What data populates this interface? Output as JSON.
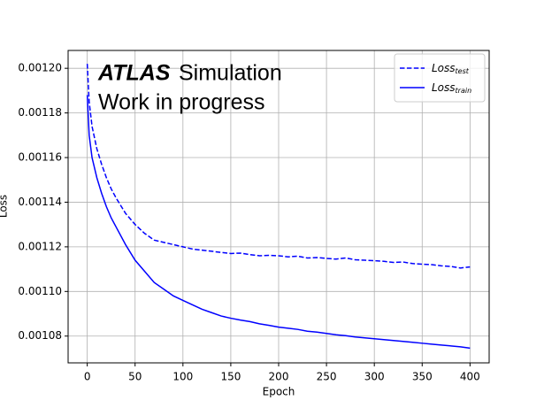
{
  "chart_data": {
    "type": "line",
    "annotations": {
      "experiment": "ATLAS",
      "label": "Simulation",
      "status": "Work in progress"
    },
    "xlabel": "Epoch",
    "ylabel": "Loss",
    "x": [
      0,
      2,
      5,
      10,
      15,
      20,
      25,
      30,
      40,
      50,
      60,
      70,
      80,
      90,
      100,
      110,
      120,
      130,
      140,
      150,
      160,
      170,
      180,
      190,
      200,
      210,
      220,
      230,
      240,
      250,
      260,
      270,
      280,
      290,
      300,
      310,
      320,
      330,
      340,
      350,
      360,
      370,
      380,
      390,
      400
    ],
    "series": [
      {
        "name": "Loss",
        "subscript": "test",
        "color": "#0000ff",
        "linestyle": "dashed",
        "values": [
          0.001202,
          0.001185,
          0.001174,
          0.001164,
          0.001157,
          0.001151,
          0.001146,
          0.001142,
          0.001135,
          0.00113,
          0.001126,
          0.001123,
          0.001122,
          0.001121,
          0.00112,
          0.001119,
          0.0011185,
          0.001118,
          0.0011175,
          0.001117,
          0.0011172,
          0.0011165,
          0.001116,
          0.0011162,
          0.001116,
          0.0011155,
          0.0011158,
          0.001115,
          0.0011152,
          0.0011148,
          0.0011145,
          0.001115,
          0.0011142,
          0.001114,
          0.0011138,
          0.0011135,
          0.001113,
          0.0011132,
          0.0011125,
          0.0011122,
          0.001112,
          0.0011115,
          0.0011112,
          0.0011105,
          0.001111
        ]
      },
      {
        "name": "Loss",
        "subscript": "train",
        "color": "#0000ff",
        "linestyle": "solid",
        "values": [
          0.001188,
          0.00117,
          0.00116,
          0.001151,
          0.001144,
          0.001138,
          0.001133,
          0.001129,
          0.001121,
          0.001114,
          0.001109,
          0.001104,
          0.001101,
          0.001098,
          0.001096,
          0.001094,
          0.001092,
          0.0010905,
          0.001089,
          0.001088,
          0.0010872,
          0.0010865,
          0.0010855,
          0.0010848,
          0.001084,
          0.0010835,
          0.001083,
          0.0010822,
          0.0010818,
          0.0010812,
          0.0010806,
          0.0010802,
          0.0010796,
          0.0010792,
          0.0010788,
          0.0010784,
          0.001078,
          0.0010776,
          0.0010772,
          0.0010768,
          0.0010764,
          0.001076,
          0.0010756,
          0.0010752,
          0.0010746
        ]
      }
    ],
    "xlim": [
      -20,
      420
    ],
    "ylim": [
      0.001068,
      0.001208
    ],
    "xticks": [
      0,
      50,
      100,
      150,
      200,
      250,
      300,
      350,
      400
    ],
    "yticks": [
      {
        "value": 0.00108,
        "label": "0.00108"
      },
      {
        "value": 0.0011,
        "label": "0.00110"
      },
      {
        "value": 0.00112,
        "label": "0.00112"
      },
      {
        "value": 0.00114,
        "label": "0.00114"
      },
      {
        "value": 0.00116,
        "label": "0.00116"
      },
      {
        "value": 0.00118,
        "label": "0.00118"
      },
      {
        "value": 0.0012,
        "label": "0.00120"
      }
    ],
    "grid": true,
    "legend": "upper right"
  }
}
